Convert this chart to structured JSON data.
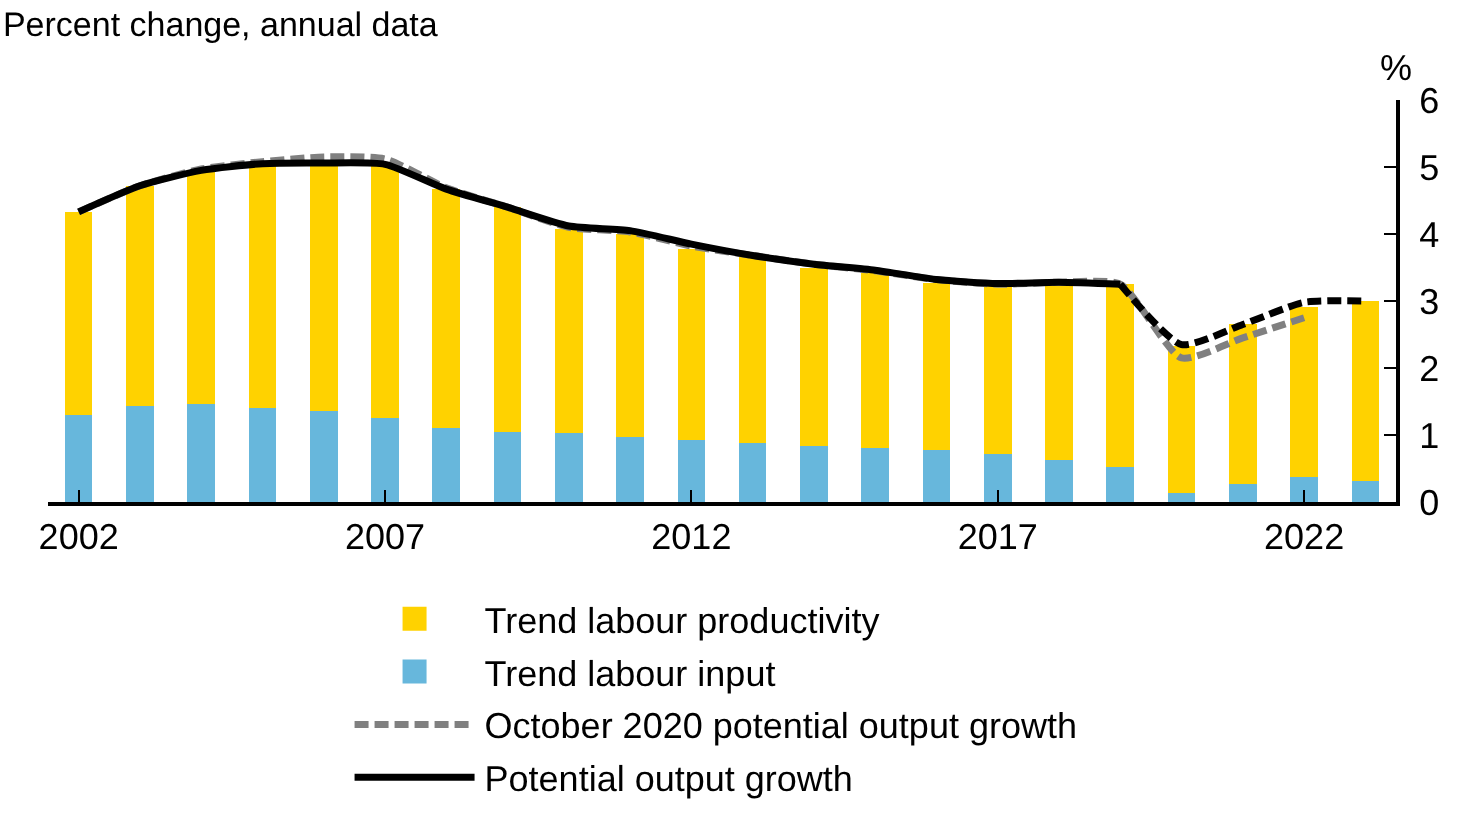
{
  "chart_data": {
    "type": "bar",
    "subtitle": "Percent change, annual data",
    "ylabel": "%",
    "stacked": true,
    "x": [
      2002,
      2003,
      2004,
      2005,
      2006,
      2007,
      2008,
      2009,
      2010,
      2011,
      2012,
      2013,
      2014,
      2015,
      2016,
      2017,
      2018,
      2019,
      2020,
      2021,
      2022,
      2023
    ],
    "series": [
      {
        "name": "Trend labour input",
        "color": "#67b7dc",
        "values": [
          1.3,
          1.44,
          1.47,
          1.41,
          1.36,
          1.25,
          1.1,
          1.04,
          1.03,
          0.97,
          0.92,
          0.88,
          0.84,
          0.81,
          0.77,
          0.71,
          0.62,
          0.52,
          0.13,
          0.27,
          0.37,
          0.31
        ]
      },
      {
        "name": "Trend labour productivity",
        "color": "#ffd200",
        "values": [
          3.03,
          3.28,
          3.48,
          3.64,
          3.7,
          3.79,
          3.57,
          3.36,
          3.04,
          3.03,
          2.86,
          2.77,
          2.66,
          2.61,
          2.5,
          2.51,
          2.61,
          2.73,
          2.2,
          2.39,
          2.54,
          2.69
        ]
      },
      {
        "name": "October 2020 potential output growth",
        "type": "line",
        "line_style": "dashed",
        "color": "#808080",
        "x": [
          2002,
          2003,
          2004,
          2005,
          2006,
          2007,
          2008,
          2009,
          2010,
          2011,
          2012,
          2013,
          2014,
          2015,
          2016,
          2017,
          2018,
          2019,
          2020,
          2021,
          2022
        ],
        "values": [
          4.33,
          4.72,
          4.97,
          5.08,
          5.15,
          5.12,
          4.69,
          4.4,
          4.1,
          4.03,
          3.82,
          3.68,
          3.55,
          3.45,
          3.32,
          3.25,
          3.28,
          3.25,
          2.15,
          2.45,
          2.75
        ]
      },
      {
        "name": "Potential output growth",
        "type": "line",
        "line_style": "solid",
        "color": "#000000",
        "x": [
          2002,
          2003,
          2004,
          2005,
          2006,
          2007,
          2008,
          2009,
          2010,
          2011,
          2012,
          2013,
          2014,
          2015,
          2016,
          2017,
          2018,
          2019
        ],
        "values": [
          4.33,
          4.72,
          4.95,
          5.05,
          5.06,
          5.04,
          4.67,
          4.4,
          4.12,
          4.05,
          3.85,
          3.68,
          3.55,
          3.46,
          3.32,
          3.26,
          3.28,
          3.25
        ]
      },
      {
        "type": "line",
        "line_style": "dashed",
        "color": "#000000",
        "x": [
          2019,
          2020,
          2021,
          2022,
          2023
        ],
        "values": [
          3.25,
          2.35,
          2.65,
          2.98,
          3.0
        ]
      }
    ],
    "xlim": [
      2001.5,
      2023.5
    ],
    "xticks": [
      2002,
      2007,
      2012,
      2017,
      2022
    ],
    "ylim": [
      0,
      6
    ],
    "yticks": [
      0,
      1,
      2,
      3,
      4,
      5,
      6
    ],
    "legend": "bottom"
  }
}
